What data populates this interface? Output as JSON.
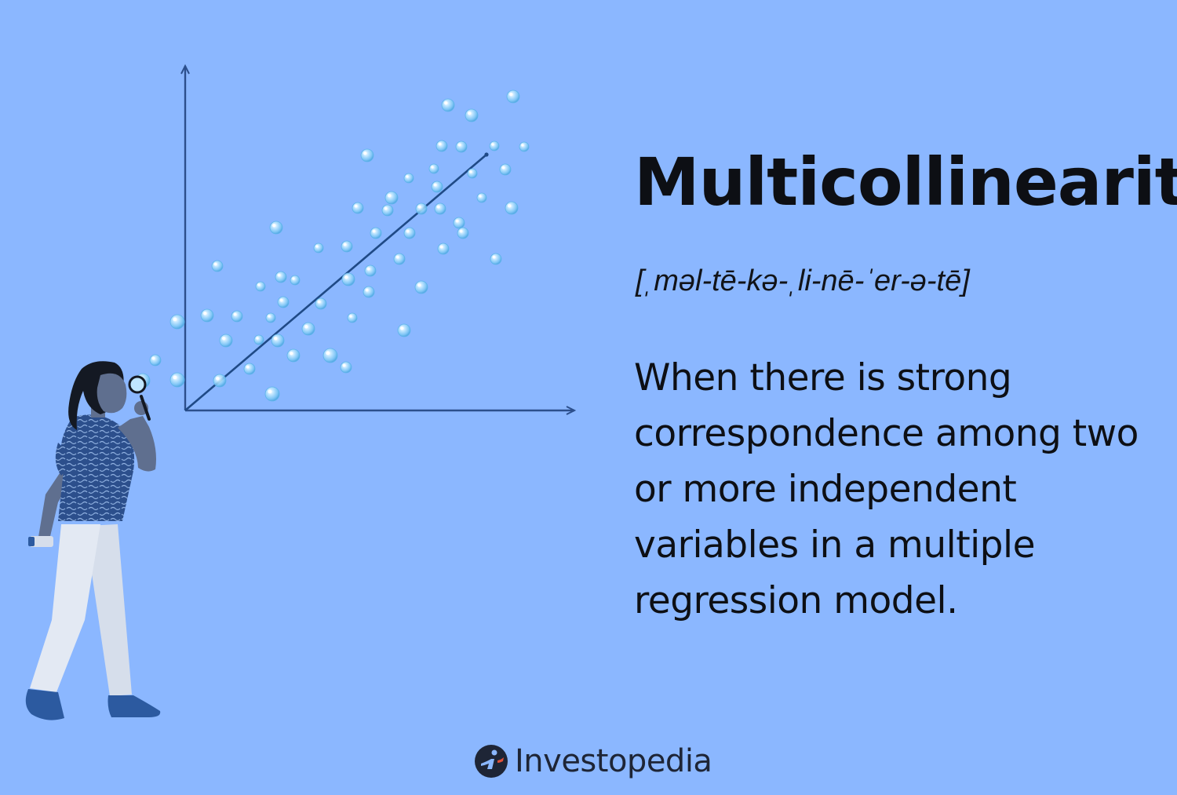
{
  "heading": {
    "title": "Multicollinearity",
    "pronunciation": "[ˌməl-tē-kə-ˌli-nē-ˈer-ə-tē]",
    "definition": "When there is strong correspondence among two or more independent variables in a multiple regression model."
  },
  "brand": {
    "name": "Investopedia",
    "logo_icon": "investopedia-logo-icon"
  },
  "illustration": {
    "figure": "woman-with-magnifying-glass",
    "plot": "scatter-with-trend-line",
    "marker": "bubble"
  },
  "colors": {
    "background": "#8bb7ff",
    "text": "#0d0f14",
    "axis": "#2c4f8c",
    "bubble": "#a6dcff",
    "shirt": "#2c4f8c",
    "pants": "#dfe6f1",
    "skin": "#5f6f8f",
    "hair": "#141923",
    "shoes": "#2c5aa0"
  }
}
